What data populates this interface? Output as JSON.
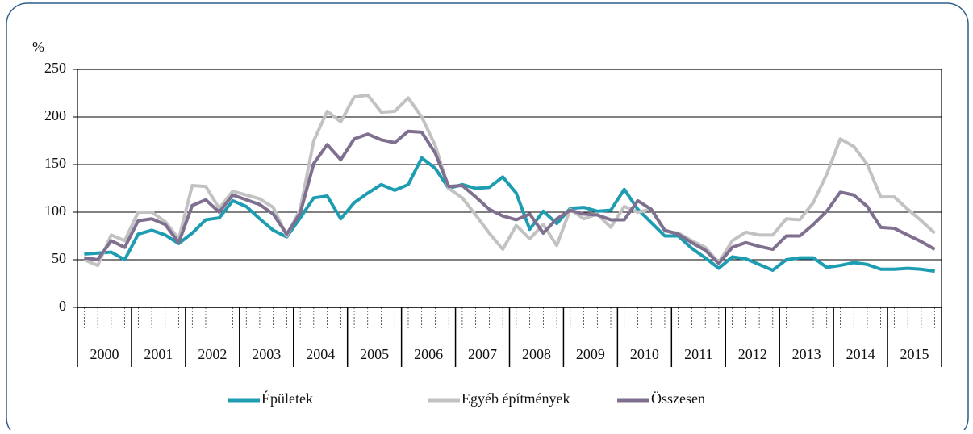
{
  "chart_data": {
    "type": "line",
    "y_unit": "%",
    "categories": [
      null,
      null,
      null,
      null,
      null,
      null,
      null,
      null,
      null,
      null,
      null,
      null,
      null,
      null,
      null,
      null,
      null,
      null,
      null,
      null,
      null,
      null,
      null,
      null,
      null,
      null,
      null,
      null,
      null,
      null,
      null,
      null,
      null,
      null,
      null,
      null,
      null,
      null,
      null,
      null,
      null,
      null,
      null,
      null,
      null,
      null,
      null,
      null,
      null,
      null,
      null,
      null,
      null,
      null,
      null,
      null,
      null,
      null,
      null,
      null,
      null,
      null,
      null,
      null
    ],
    "year_labels": [
      "2000",
      "2001",
      "2002",
      "2003",
      "2004",
      "2005",
      "2006",
      "2007",
      "2008",
      "2009",
      "2010",
      "2011",
      "2012",
      "2013",
      "2014",
      "2015"
    ],
    "ylim": [
      0,
      250
    ],
    "yticks": [
      0,
      50,
      100,
      150,
      200,
      250
    ],
    "grid": true,
    "series": [
      {
        "name": "Épületek",
        "color": "#1e9db2",
        "values": [
          56,
          57,
          58,
          50,
          77,
          81,
          76,
          67,
          78,
          92,
          94,
          112,
          106,
          93,
          81,
          74,
          94,
          115,
          117,
          93,
          110,
          120,
          129,
          123,
          129,
          157,
          146,
          125,
          129,
          125,
          126,
          137,
          120,
          82,
          101,
          88,
          104,
          105,
          101,
          102,
          124,
          103,
          89,
          75,
          75,
          62,
          52,
          41,
          53,
          51,
          45,
          39,
          50,
          52,
          52,
          42,
          44,
          47,
          45,
          40,
          40,
          41,
          40,
          38
        ]
      },
      {
        "name": "Egyéb építmények",
        "color": "#c2c2c2",
        "values": [
          50,
          44,
          76,
          70,
          100,
          100,
          90,
          72,
          128,
          127,
          104,
          122,
          118,
          114,
          105,
          75,
          103,
          175,
          206,
          195,
          221,
          223,
          205,
          206,
          220,
          200,
          170,
          125,
          115,
          97,
          78,
          61,
          86,
          72,
          87,
          65,
          103,
          93,
          98,
          84,
          106,
          100,
          103,
          80,
          78,
          70,
          63,
          47,
          70,
          79,
          76,
          76,
          93,
          92,
          110,
          140,
          177,
          169,
          150,
          116,
          116,
          103,
          91,
          78
        ]
      },
      {
        "name": "Összesen",
        "color": "#7f7090",
        "values": [
          52,
          50,
          70,
          63,
          91,
          93,
          87,
          68,
          107,
          113,
          100,
          118,
          113,
          108,
          98,
          77,
          99,
          151,
          171,
          155,
          177,
          182,
          176,
          173,
          185,
          184,
          162,
          127,
          128,
          116,
          103,
          96,
          92,
          98,
          78,
          93,
          102,
          98,
          97,
          92,
          92,
          112,
          103,
          81,
          77,
          68,
          60,
          46,
          63,
          68,
          64,
          61,
          75,
          75,
          87,
          101,
          121,
          118,
          106,
          84,
          83,
          76,
          69,
          61
        ]
      }
    ]
  }
}
